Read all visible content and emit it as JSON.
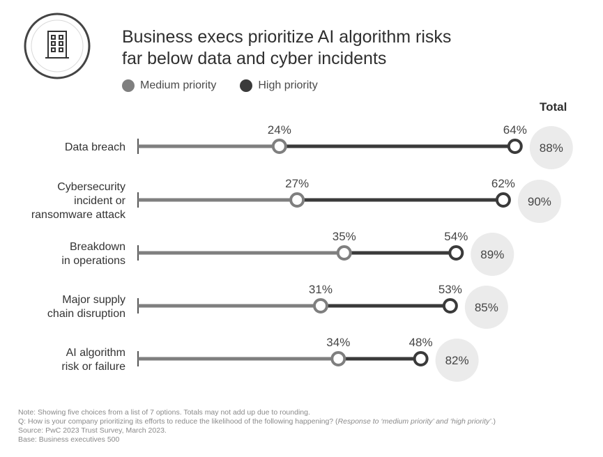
{
  "title_line1": "Business execs prioritize AI algorithm risks",
  "title_line2": "far below data and cyber incidents",
  "legend": {
    "medium_label": "Medium priority",
    "high_label": "High priority"
  },
  "total_header": "Total",
  "icon": "building-icon",
  "colors": {
    "medium": "#7f7f7f",
    "high": "#3a3a3a",
    "axis": "#555555",
    "total_bubble": "#ebebeb",
    "icon_ring": "#444444"
  },
  "chart_data": {
    "type": "dumbbell",
    "title": "Business execs prioritize AI algorithm risks far below data and cyber incidents",
    "categories": [
      "Data breach",
      "Cybersecurity incident or ransomware attack",
      "Breakdown in operations",
      "Major supply chain disruption",
      "AI algorithm risk or failure"
    ],
    "category_lines": [
      [
        "Data breach"
      ],
      [
        "Cybersecurity",
        "incident or",
        "ransomware attack"
      ],
      [
        "Breakdown",
        "in operations"
      ],
      [
        "Major supply",
        "chain disruption"
      ],
      [
        "AI algorithm",
        "risk or failure"
      ]
    ],
    "series": [
      {
        "name": "Medium priority",
        "values": [
          24,
          27,
          35,
          31,
          34
        ],
        "labels": [
          "24%",
          "27%",
          "35%",
          "31%",
          "34%"
        ]
      },
      {
        "name": "High priority",
        "values": [
          64,
          62,
          54,
          53,
          48
        ],
        "labels": [
          "64%",
          "62%",
          "54%",
          "53%",
          "48%"
        ]
      }
    ],
    "totals": [
      88,
      90,
      89,
      85,
      82
    ],
    "total_labels": [
      "88%",
      "90%",
      "89%",
      "85%",
      "82%"
    ],
    "legend_position": "top-left",
    "grid": false
  },
  "notes": {
    "line1": "Note: Showing five choices from a list of 7 options. Totals may not add up due to rounding.",
    "line2_prefix": "Q: How is your company prioritizing its efforts to reduce the likelihood of the following happening? (",
    "line2_italic": "Response to ‘medium priority’ and ‘high priority’",
    "line2_suffix": ".)",
    "line3": "Source: PwC 2023 Trust Survey, March 2023.",
    "line4": "Base: Business executives 500"
  }
}
